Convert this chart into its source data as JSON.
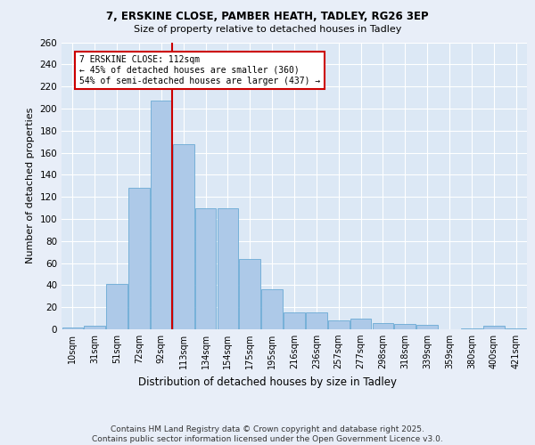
{
  "title_line1": "7, ERSKINE CLOSE, PAMBER HEATH, TADLEY, RG26 3EP",
  "title_line2": "Size of property relative to detached houses in Tadley",
  "xlabel": "Distribution of detached houses by size in Tadley",
  "ylabel": "Number of detached properties",
  "categories": [
    "10sqm",
    "31sqm",
    "51sqm",
    "72sqm",
    "92sqm",
    "113sqm",
    "134sqm",
    "154sqm",
    "175sqm",
    "195sqm",
    "216sqm",
    "236sqm",
    "257sqm",
    "277sqm",
    "298sqm",
    "318sqm",
    "339sqm",
    "359sqm",
    "380sqm",
    "400sqm",
    "421sqm"
  ],
  "values": [
    2,
    3,
    41,
    128,
    207,
    168,
    110,
    110,
    64,
    36,
    15,
    15,
    8,
    10,
    6,
    5,
    4,
    0,
    1,
    3,
    1
  ],
  "bar_color": "#adc9e8",
  "bar_edge_color": "#6aaad4",
  "red_line_color": "#cc0000",
  "annotation_text": "7 ERSKINE CLOSE: 112sqm\n← 45% of detached houses are smaller (360)\n54% of semi-detached houses are larger (437) →",
  "annotation_box_color": "#ffffff",
  "annotation_box_edge": "#cc0000",
  "ylim": [
    0,
    260
  ],
  "yticks": [
    0,
    20,
    40,
    60,
    80,
    100,
    120,
    140,
    160,
    180,
    200,
    220,
    240,
    260
  ],
  "background_color": "#dce8f5",
  "fig_background": "#e8eef8",
  "footer_line1": "Contains HM Land Registry data © Crown copyright and database right 2025.",
  "footer_line2": "Contains public sector information licensed under the Open Government Licence v3.0."
}
